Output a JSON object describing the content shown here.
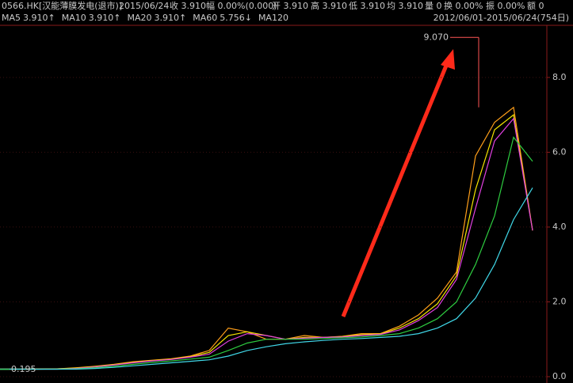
{
  "header": {
    "symbol": "0566.HK[汉能薄膜发电(退市)]",
    "date": "2015/06/24",
    "close": "收 3.910",
    "change": "幅 0.00%(0.000)",
    "open": "开 3.910",
    "high": "高 3.910",
    "low": "低 3.910",
    "avg": "均 3.910",
    "volume": "量 0",
    "turnover": "换 0.00%",
    "amplitude": "振 0.00%",
    "amount": "额 0",
    "range": "2012/06/01-2015/06/24(754日)"
  },
  "chart_data": {
    "type": "line",
    "categories": [
      null,
      null,
      null,
      null,
      null,
      null,
      null,
      null,
      null,
      null,
      null,
      null,
      null,
      null,
      null,
      null,
      null,
      null,
      null,
      null,
      null,
      null,
      null,
      null,
      null,
      null,
      null,
      null,
      null
    ],
    "series": [
      {
        "name": "MA5",
        "value_label": "3.910↑",
        "color": "#ff9f1a",
        "values": [
          0.2,
          0.2,
          0.21,
          0.21,
          0.24,
          0.28,
          0.33,
          0.4,
          0.44,
          0.48,
          0.55,
          0.7,
          1.3,
          1.2,
          1.0,
          1.0,
          1.1,
          1.05,
          1.08,
          1.15,
          1.15,
          1.35,
          1.65,
          2.1,
          2.8,
          5.9,
          6.8,
          7.2,
          3.91
        ]
      },
      {
        "name": "MA10",
        "value_label": "3.910↑",
        "color": "#f5e400",
        "values": [
          0.2,
          0.2,
          0.2,
          0.21,
          0.23,
          0.27,
          0.32,
          0.38,
          0.43,
          0.47,
          0.53,
          0.65,
          1.1,
          1.2,
          1.1,
          1.0,
          1.05,
          1.05,
          1.07,
          1.12,
          1.14,
          1.3,
          1.55,
          1.95,
          2.7,
          5.0,
          6.6,
          7.0,
          3.91
        ]
      },
      {
        "name": "MA20",
        "value_label": "3.910↑",
        "color": "#e040e0",
        "values": [
          0.2,
          0.2,
          0.2,
          0.2,
          0.22,
          0.26,
          0.31,
          0.37,
          0.42,
          0.46,
          0.52,
          0.6,
          0.95,
          1.15,
          1.1,
          1.0,
          1.03,
          1.05,
          1.06,
          1.1,
          1.13,
          1.25,
          1.5,
          1.85,
          2.6,
          4.5,
          6.3,
          6.9,
          3.91
        ]
      },
      {
        "name": "MA60",
        "value_label": "5.756↓",
        "color": "#2ecc40",
        "values": [
          0.2,
          0.2,
          0.2,
          0.2,
          0.21,
          0.24,
          0.28,
          0.33,
          0.38,
          0.42,
          0.47,
          0.52,
          0.7,
          0.9,
          1.0,
          1.0,
          1.0,
          1.02,
          1.04,
          1.06,
          1.1,
          1.15,
          1.3,
          1.55,
          2.0,
          3.0,
          4.3,
          6.4,
          5.756
        ]
      },
      {
        "name": "MA120",
        "color": "#40d8e8",
        "values": [
          0.2,
          0.2,
          0.2,
          0.2,
          0.2,
          0.22,
          0.25,
          0.29,
          0.33,
          0.37,
          0.41,
          0.45,
          0.55,
          0.7,
          0.8,
          0.88,
          0.93,
          0.97,
          1.0,
          1.02,
          1.05,
          1.08,
          1.15,
          1.3,
          1.55,
          2.1,
          3.0,
          4.2,
          5.05
        ]
      }
    ],
    "ylim": [
      0,
      9.33
    ],
    "yticks": [
      {
        "value": 0,
        "label": "0.0"
      },
      {
        "value": 2,
        "label": "2.0"
      },
      {
        "value": 4,
        "label": "4.0"
      },
      {
        "value": 6,
        "label": "6.0"
      },
      {
        "value": 8,
        "label": "8.0"
      }
    ],
    "grid": true,
    "max_marker": {
      "value": 9.07,
      "label": "9.070"
    },
    "min_marker": {
      "value": 0.195,
      "label": "0.195"
    }
  }
}
